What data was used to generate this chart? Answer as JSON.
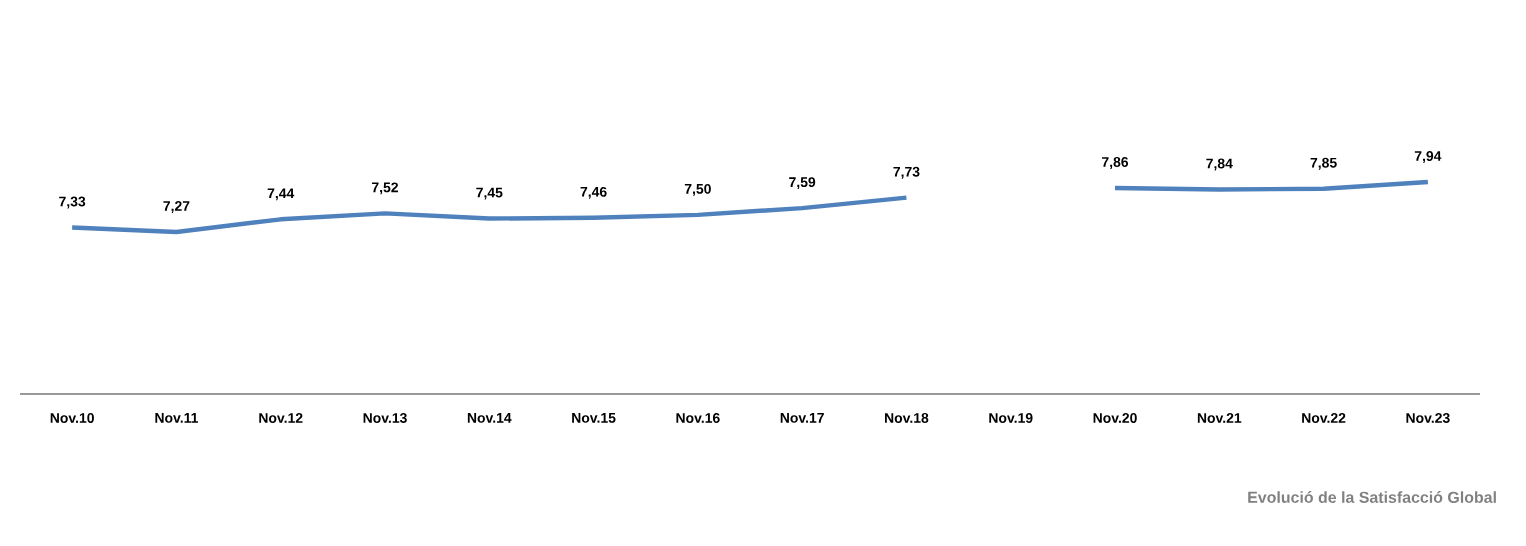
{
  "chart_data": {
    "type": "line",
    "categories": [
      "Nov.10",
      "Nov.11",
      "Nov.12",
      "Nov.13",
      "Nov.14",
      "Nov.15",
      "Nov.16",
      "Nov.17",
      "Nov.18",
      "Nov.19",
      "Nov.20",
      "Nov.21",
      "Nov.22",
      "Nov.23"
    ],
    "values": [
      7.33,
      7.27,
      7.44,
      7.52,
      7.45,
      7.46,
      7.5,
      7.59,
      7.73,
      null,
      7.86,
      7.84,
      7.85,
      7.94
    ],
    "value_labels": [
      "7,33",
      "7,27",
      "7,44",
      "7,52",
      "7,45",
      "7,46",
      "7,50",
      "7,59",
      "7,73",
      null,
      "7,86",
      "7,84",
      "7,85",
      "7,94"
    ],
    "color": "#4f81bd",
    "tick_labels": "x",
    "marker": "none",
    "annotations": [
      "Evolució de la Satisfacció Global"
    ]
  }
}
